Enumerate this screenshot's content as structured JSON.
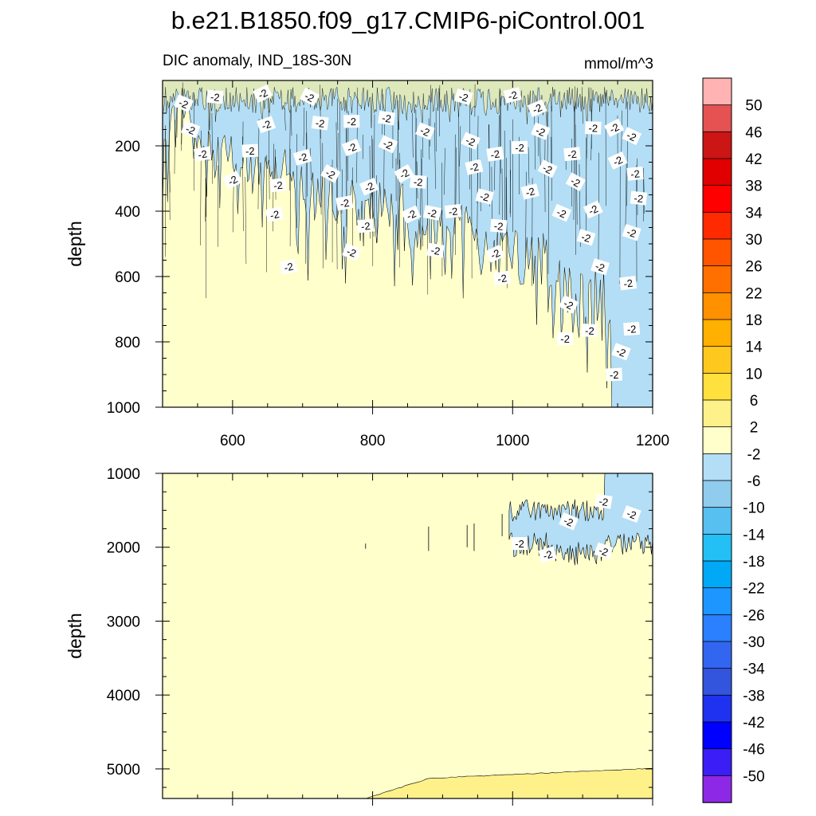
{
  "figure": {
    "title": "b.e21.B1850.f09_g17.CMIP6-piControl.001",
    "subtitle_left": "DIC anomaly, IND_18S-30N",
    "subtitle_right": "mmol/m^3"
  },
  "colors": {
    "light_yellow": "#FFFFCC",
    "yellow": "#FFF18A",
    "light_blue": "#B3DEF5",
    "contour_line": "#000000"
  },
  "chart_data": [
    {
      "type": "heatmap",
      "panel": "upper",
      "xlabel": "",
      "ylabel": "depth",
      "xlim": [
        500,
        1200
      ],
      "ylim": [
        1000,
        0
      ],
      "x_ticks": [
        600,
        800,
        1000,
        1200
      ],
      "y_ticks": [
        200,
        400,
        600,
        800,
        1000
      ],
      "contour_label": "-2",
      "contour_labels": [
        {
          "x": 530,
          "y": 70,
          "text": "-2"
        },
        {
          "x": 575,
          "y": 50,
          "text": "-2"
        },
        {
          "x": 643,
          "y": 40,
          "text": "-2"
        },
        {
          "x": 710,
          "y": 50,
          "text": "-2"
        },
        {
          "x": 540,
          "y": 150,
          "text": "-2"
        },
        {
          "x": 557,
          "y": 225,
          "text": "-2"
        },
        {
          "x": 600,
          "y": 305,
          "text": "-2"
        },
        {
          "x": 625,
          "y": 215,
          "text": "-2"
        },
        {
          "x": 648,
          "y": 135,
          "text": "-2"
        },
        {
          "x": 665,
          "y": 320,
          "text": "-2"
        },
        {
          "x": 660,
          "y": 410,
          "text": "-2"
        },
        {
          "x": 680,
          "y": 570,
          "text": "-2"
        },
        {
          "x": 700,
          "y": 235,
          "text": "-2"
        },
        {
          "x": 725,
          "y": 130,
          "text": "-2"
        },
        {
          "x": 740,
          "y": 285,
          "text": "-2"
        },
        {
          "x": 760,
          "y": 375,
          "text": "-2"
        },
        {
          "x": 770,
          "y": 525,
          "text": "-2"
        },
        {
          "x": 770,
          "y": 125,
          "text": "-2"
        },
        {
          "x": 770,
          "y": 205,
          "text": "-2"
        },
        {
          "x": 795,
          "y": 325,
          "text": "-2"
        },
        {
          "x": 790,
          "y": 445,
          "text": "-2"
        },
        {
          "x": 820,
          "y": 115,
          "text": "-2"
        },
        {
          "x": 822,
          "y": 195,
          "text": "-2"
        },
        {
          "x": 845,
          "y": 285,
          "text": "-2"
        },
        {
          "x": 855,
          "y": 410,
          "text": "-2"
        },
        {
          "x": 865,
          "y": 310,
          "text": "-2"
        },
        {
          "x": 875,
          "y": 155,
          "text": "-2"
        },
        {
          "x": 885,
          "y": 405,
          "text": "-2"
        },
        {
          "x": 890,
          "y": 520,
          "text": "-2"
        },
        {
          "x": 915,
          "y": 400,
          "text": "-2"
        },
        {
          "x": 930,
          "y": 50,
          "text": "-2"
        },
        {
          "x": 940,
          "y": 185,
          "text": "-2"
        },
        {
          "x": 945,
          "y": 265,
          "text": "-2"
        },
        {
          "x": 960,
          "y": 355,
          "text": "-2"
        },
        {
          "x": 975,
          "y": 225,
          "text": "-2"
        },
        {
          "x": 980,
          "y": 445,
          "text": "-2"
        },
        {
          "x": 975,
          "y": 530,
          "text": "-2"
        },
        {
          "x": 985,
          "y": 605,
          "text": "-2"
        },
        {
          "x": 1000,
          "y": 45,
          "text": "-2"
        },
        {
          "x": 1010,
          "y": 205,
          "text": "-2"
        },
        {
          "x": 1025,
          "y": 340,
          "text": "-2"
        },
        {
          "x": 1035,
          "y": 85,
          "text": "-2"
        },
        {
          "x": 1040,
          "y": 155,
          "text": "-2"
        },
        {
          "x": 1050,
          "y": 270,
          "text": "-2"
        },
        {
          "x": 1070,
          "y": 405,
          "text": "-2"
        },
        {
          "x": 1085,
          "y": 225,
          "text": "-2"
        },
        {
          "x": 1090,
          "y": 310,
          "text": "-2"
        },
        {
          "x": 1115,
          "y": 395,
          "text": "-2"
        },
        {
          "x": 1105,
          "y": 480,
          "text": "-2"
        },
        {
          "x": 1080,
          "y": 685,
          "text": "-2"
        },
        {
          "x": 1075,
          "y": 790,
          "text": "-2"
        },
        {
          "x": 1115,
          "y": 145,
          "text": "-2"
        },
        {
          "x": 1145,
          "y": 145,
          "text": "-2"
        },
        {
          "x": 1150,
          "y": 245,
          "text": "-2"
        },
        {
          "x": 1125,
          "y": 570,
          "text": "-2"
        },
        {
          "x": 1110,
          "y": 765,
          "text": "-2"
        },
        {
          "x": 1170,
          "y": 170,
          "text": "-2"
        },
        {
          "x": 1175,
          "y": 285,
          "text": "-2"
        },
        {
          "x": 1180,
          "y": 360,
          "text": "-2"
        },
        {
          "x": 1170,
          "y": 465,
          "text": "-2"
        },
        {
          "x": 1165,
          "y": 620,
          "text": "-2"
        },
        {
          "x": 1170,
          "y": 760,
          "text": "-2"
        },
        {
          "x": 1155,
          "y": 830,
          "text": "-2"
        },
        {
          "x": 1145,
          "y": 900,
          "text": "-2"
        }
      ]
    },
    {
      "type": "heatmap",
      "panel": "lower",
      "xlabel": "",
      "ylabel": "depth",
      "xlim": [
        500,
        1200
      ],
      "ylim": [
        5400,
        1000
      ],
      "x_ticks": [
        600,
        800,
        1000,
        1200
      ],
      "y_ticks": [
        1000,
        2000,
        3000,
        4000,
        5000
      ],
      "contour_labels": [
        {
          "x": 1130,
          "y": 1380,
          "text": "-2"
        },
        {
          "x": 1170,
          "y": 1550,
          "text": "-2"
        },
        {
          "x": 1080,
          "y": 1650,
          "text": "-2"
        },
        {
          "x": 1010,
          "y": 1950,
          "text": "-2"
        },
        {
          "x": 1050,
          "y": 2100,
          "text": "-2"
        },
        {
          "x": 1130,
          "y": 2050,
          "text": "-2"
        }
      ]
    }
  ],
  "colorbar": {
    "levels": [
      "50",
      "46",
      "42",
      "38",
      "34",
      "30",
      "26",
      "22",
      "18",
      "14",
      "10",
      "6",
      "2",
      "-2",
      "-6",
      "-10",
      "-14",
      "-18",
      "-22",
      "-26",
      "-30",
      "-34",
      "-38",
      "-42",
      "-46",
      "-50"
    ],
    "colors": [
      "#FFB3B3",
      "#E45252",
      "#CC1515",
      "#E00000",
      "#FF0000",
      "#FF2A00",
      "#FF5500",
      "#FF7000",
      "#FF9000",
      "#FFB000",
      "#FFC81E",
      "#FFE03C",
      "#FFF18A",
      "#FFFFCC",
      "#B3DEF5",
      "#8FCCEE",
      "#57C0F0",
      "#22C0F5",
      "#00A8F5",
      "#1E96FF",
      "#2A80FF",
      "#3366F0",
      "#3355DD",
      "#1E32F0",
      "#0000FF",
      "#3A1EF5",
      "#8C28E6"
    ]
  }
}
